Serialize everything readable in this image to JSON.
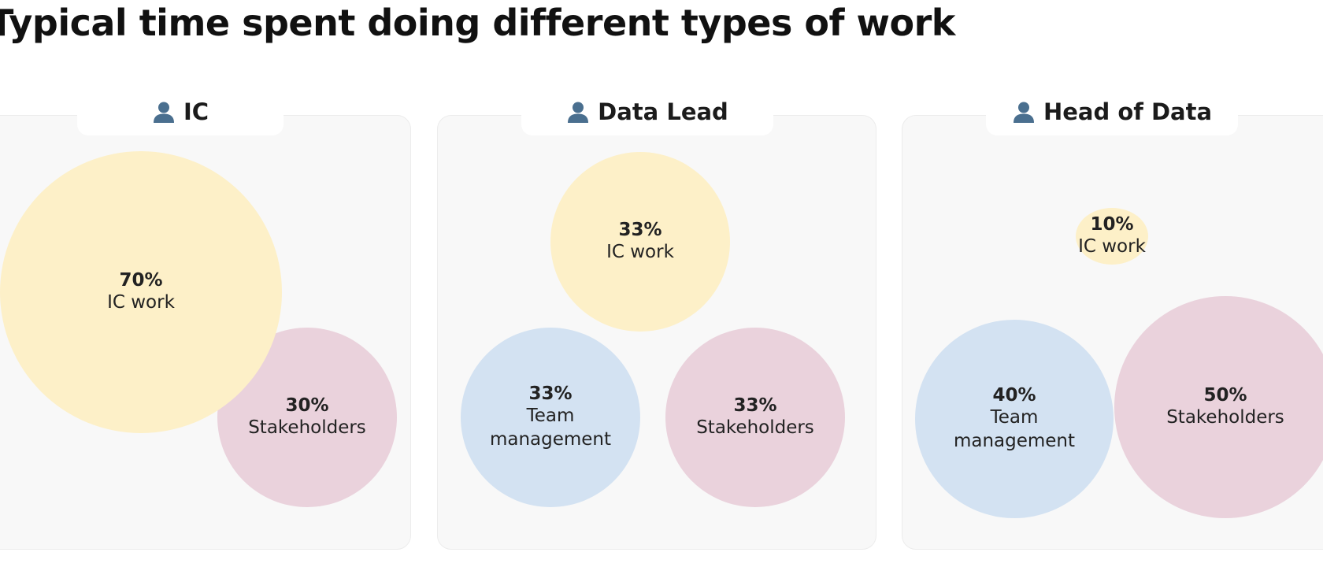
{
  "title": "Typical time spent doing different types of work",
  "icon": "person-icon",
  "colors": {
    "ic_work": "#fdf0c8",
    "stakeholders": "#ead2dc",
    "team_management": "#d3e2f2",
    "icon": "#4a6f8f"
  },
  "panels": [
    {
      "label": "IC",
      "bubbles": [
        {
          "value": "70%",
          "label": "IC work"
        },
        {
          "value": "30%",
          "label": "Stakeholders"
        }
      ]
    },
    {
      "label": "Data Lead",
      "bubbles": [
        {
          "value": "33%",
          "label": "IC work"
        },
        {
          "value": "33%",
          "label": "Team management"
        },
        {
          "value": "33%",
          "label": "Stakeholders"
        }
      ]
    },
    {
      "label": "Head of Data",
      "bubbles": [
        {
          "value": "10%",
          "label": "IC work"
        },
        {
          "value": "40%",
          "label": "Team management"
        },
        {
          "value": "50%",
          "label": "Stakeholders"
        }
      ]
    }
  ],
  "chart_data": {
    "type": "bubble",
    "title": "Typical time spent doing different types of work",
    "unit": "%",
    "panels": [
      {
        "name": "IC",
        "values": [
          {
            "category": "IC work",
            "value": 70
          },
          {
            "category": "Stakeholders",
            "value": 30
          }
        ]
      },
      {
        "name": "Data Lead",
        "values": [
          {
            "category": "IC work",
            "value": 33
          },
          {
            "category": "Team management",
            "value": 33
          },
          {
            "category": "Stakeholders",
            "value": 33
          }
        ]
      },
      {
        "name": "Head of Data",
        "values": [
          {
            "category": "IC work",
            "value": 10
          },
          {
            "category": "Team management",
            "value": 40
          },
          {
            "category": "Stakeholders",
            "value": 50
          }
        ]
      }
    ]
  }
}
